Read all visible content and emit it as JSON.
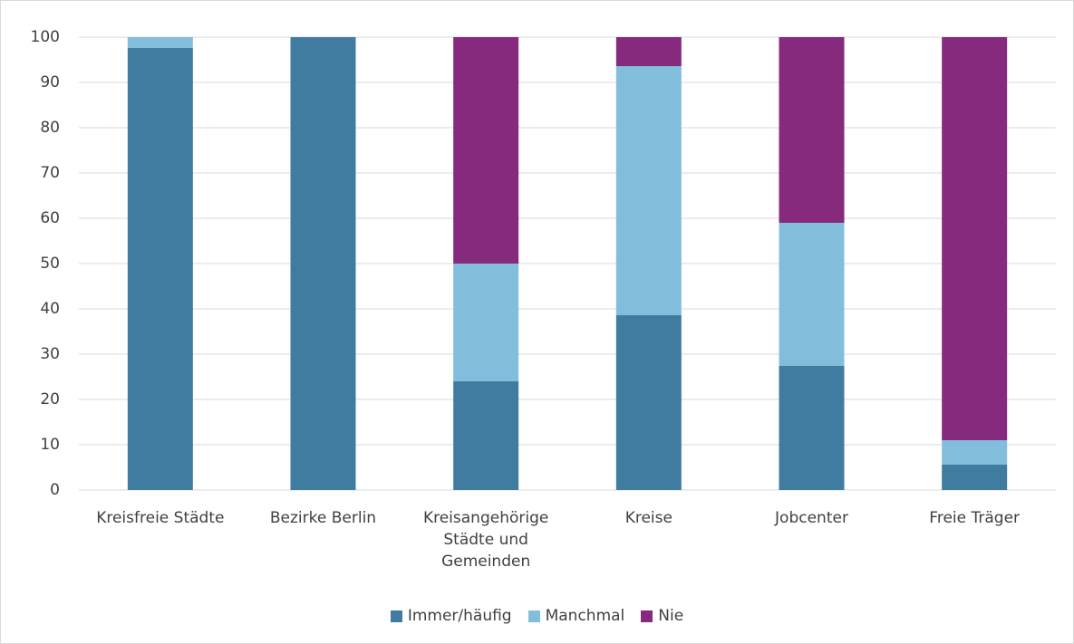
{
  "chart_data": {
    "type": "stacked_bar",
    "categories": [
      "Kreisfreie Städte",
      "Bezirke Berlin",
      "Kreisangehörige Städte und Gemeinden",
      "Kreise",
      "Jobcenter",
      "Freie Träger"
    ],
    "series": [
      {
        "name": "Immer/häufig",
        "color": "#3f7ca0",
        "values": [
          97.6,
          100,
          24,
          38.6,
          27.4,
          5.6
        ]
      },
      {
        "name": "Manchmal",
        "color": "#82bedb",
        "values": [
          2.4,
          0,
          26,
          55,
          31.6,
          5.4
        ]
      },
      {
        "name": "Nie",
        "color": "#852a7c",
        "values": [
          0,
          0,
          50,
          6.4,
          41,
          89
        ]
      }
    ],
    "ylim": [
      0,
      100
    ],
    "yticks": [
      0,
      10,
      20,
      30,
      40,
      50,
      60,
      70,
      80,
      90,
      100
    ],
    "grid": true,
    "legend": "bottom"
  }
}
